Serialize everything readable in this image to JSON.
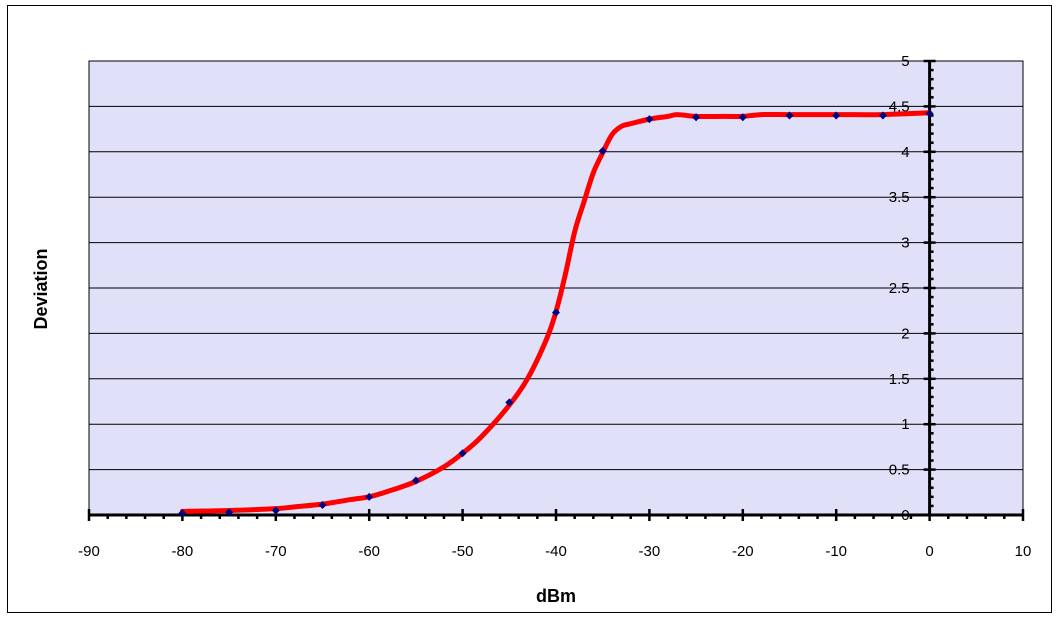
{
  "chart_data": {
    "type": "line",
    "title": "",
    "xlabel": "dBm",
    "ylabel": "Deviation",
    "xlim": [
      -90,
      10
    ],
    "ylim": [
      0,
      5
    ],
    "x_ticks": [
      -90,
      -80,
      -70,
      -60,
      -50,
      -40,
      -30,
      -20,
      -10,
      0,
      10
    ],
    "y_ticks": [
      0,
      0.5,
      1,
      1.5,
      2,
      2.5,
      3,
      3.5,
      4,
      4.5,
      5
    ],
    "x_tick_labels": [
      "-90",
      "-80",
      "-70",
      "-60",
      "-50",
      "-40",
      "-30",
      "-20",
      "-10",
      "0",
      "10"
    ],
    "y_tick_labels": [
      "0",
      "0.5",
      "1",
      "1.5",
      "2",
      "2.5",
      "3",
      "3.5",
      "4",
      "4.5",
      "5"
    ],
    "grid": "horizontal",
    "legend": "none",
    "series": [
      {
        "kind": "markers",
        "x": [
          -80,
          -75,
          -70,
          -65,
          -60,
          -55,
          -50,
          -45,
          -40,
          -35,
          -30,
          -25,
          -20,
          -15,
          -10,
          -5,
          0
        ],
        "y": [
          0.02,
          0.03,
          0.05,
          0.11,
          0.2,
          0.38,
          0.68,
          1.24,
          2.23,
          4.01,
          4.36,
          4.38,
          4.38,
          4.4,
          4.4,
          4.4,
          4.42
        ]
      },
      {
        "kind": "smooth-line",
        "x": [
          -80,
          -75,
          -70,
          -68,
          -65,
          -62,
          -60,
          -58,
          -55,
          -52,
          -50,
          -48,
          -45,
          -43,
          -41,
          -40,
          -39,
          -38,
          -37,
          -36,
          -35,
          -34,
          -33,
          -32,
          -30,
          -28,
          -27,
          -25,
          -22,
          -20,
          -18,
          -15,
          -10,
          -5,
          0
        ],
        "y": [
          0.04,
          0.05,
          0.07,
          0.09,
          0.12,
          0.17,
          0.2,
          0.26,
          0.37,
          0.53,
          0.68,
          0.86,
          1.21,
          1.51,
          1.94,
          2.24,
          2.65,
          3.12,
          3.45,
          3.77,
          3.99,
          4.19,
          4.28,
          4.31,
          4.36,
          4.39,
          4.41,
          4.39,
          4.39,
          4.39,
          4.41,
          4.41,
          4.41,
          4.41,
          4.43
        ]
      }
    ]
  },
  "colors": {
    "plot_background": "#e0e0f8",
    "line": "#ff0000",
    "marker": "#000080",
    "axis": "#000000",
    "grid": "#000000"
  }
}
